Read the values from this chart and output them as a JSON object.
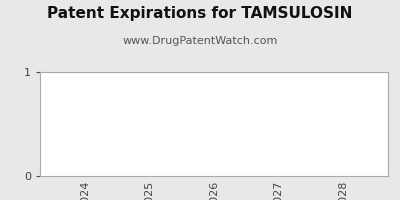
{
  "title": "Patent Expirations for TAMSULOSIN",
  "subtitle": "www.DrugPatentWatch.com",
  "title_fontsize": 11,
  "subtitle_fontsize": 8,
  "title_fontweight": "bold",
  "years": [
    2024,
    2025,
    2026,
    2027,
    2028
  ],
  "values": [
    0,
    0,
    0,
    0,
    0
  ],
  "ylim": [
    0,
    1
  ],
  "yticks": [
    0,
    1
  ],
  "background_color": "#e8e8e8",
  "plot_bg_color": "#ffffff",
  "bar_color": "#888888",
  "spine_color": "#aaaaaa",
  "tick_color": "#444444",
  "title_color": "#111111",
  "subtitle_color": "#555555",
  "xlabel_rotation": 90,
  "tick_fontsize": 8,
  "ytick_fontsize": 8
}
